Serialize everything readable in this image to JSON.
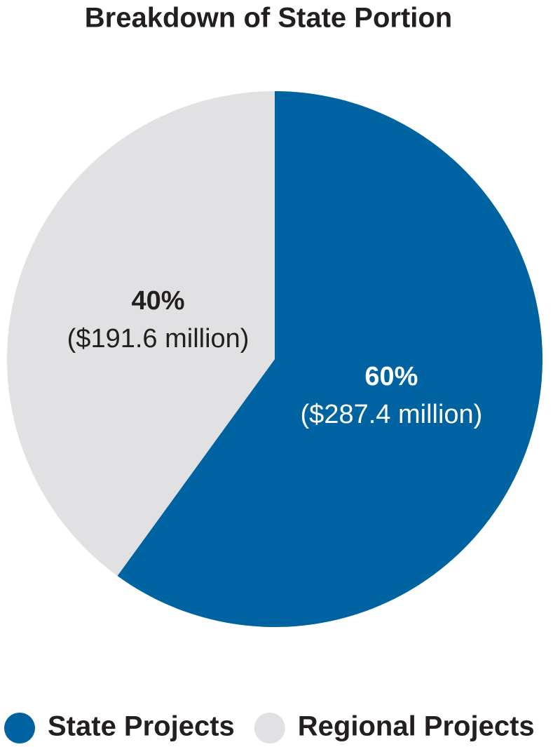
{
  "chart_data": {
    "type": "pie",
    "title": "Breakdown of State Portion",
    "categories": [
      "State Projects",
      "Regional Projects"
    ],
    "values": [
      60,
      40
    ],
    "value_labels": [
      "60%",
      "40%"
    ],
    "amounts": [
      287.4,
      191.6
    ],
    "amount_labels": [
      "($287.4 million)",
      "($191.6 million)"
    ],
    "colors": [
      "#0063a1",
      "#e1e1e3"
    ],
    "label_colors": [
      "#ffffff",
      "#231f20"
    ],
    "legend": "bottom"
  }
}
